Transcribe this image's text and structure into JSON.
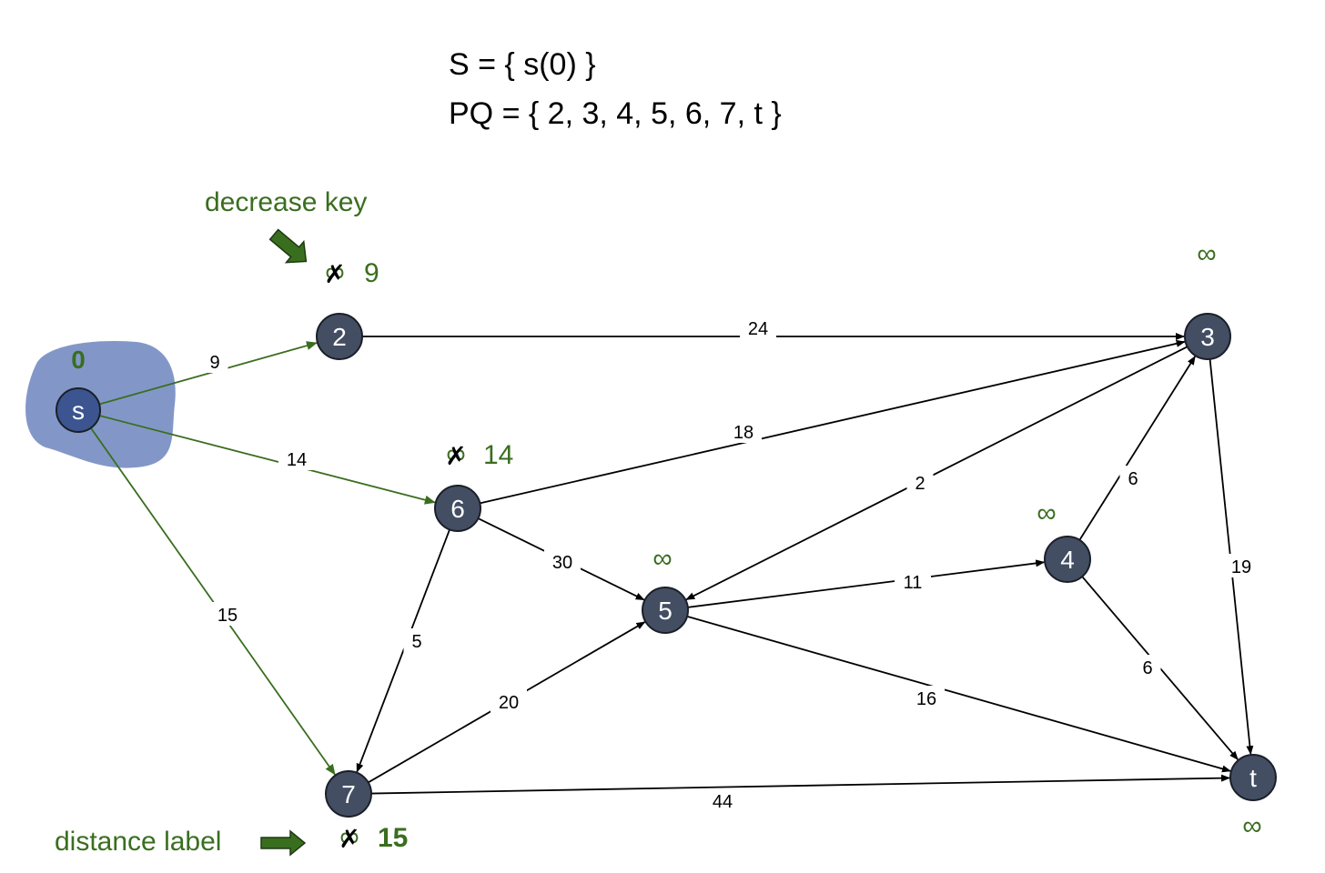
{
  "colors": {
    "green": "#3a6e1f",
    "node_fill": "#434e63",
    "node_stroke": "#1a1f28",
    "blob": "#8297c8",
    "source_fill": "#3c5590",
    "black": "#000000"
  },
  "sets": {
    "s_line": "S = { s(0) }",
    "pq_line": "PQ = { 2, 3, 4, 5, 6, 7, t }"
  },
  "annotations": {
    "decrease_key": "decrease key",
    "distance_label": "distance label"
  },
  "nodes": [
    {
      "id": "s",
      "label": "s",
      "dist": "0",
      "crossed": false
    },
    {
      "id": "2",
      "label": "2",
      "dist": "∞",
      "crossed": true,
      "new_dist": "9"
    },
    {
      "id": "3",
      "label": "3",
      "dist": "∞",
      "crossed": false
    },
    {
      "id": "4",
      "label": "4",
      "dist": "∞",
      "crossed": false
    },
    {
      "id": "5",
      "label": "5",
      "dist": "∞",
      "crossed": false
    },
    {
      "id": "6",
      "label": "6",
      "dist": "∞",
      "crossed": true,
      "new_dist": "14"
    },
    {
      "id": "7",
      "label": "7",
      "dist": "∞",
      "crossed": true,
      "new_dist": "15"
    },
    {
      "id": "t",
      "label": "t",
      "dist": "∞",
      "crossed": false
    }
  ],
  "edges": [
    {
      "from": "s",
      "to": "2",
      "weight": "9",
      "highlight": true
    },
    {
      "from": "s",
      "to": "6",
      "weight": "14",
      "highlight": true
    },
    {
      "from": "s",
      "to": "7",
      "weight": "15",
      "highlight": true
    },
    {
      "from": "2",
      "to": "3",
      "weight": "24",
      "highlight": false
    },
    {
      "from": "6",
      "to": "3",
      "weight": "18",
      "highlight": false
    },
    {
      "from": "3",
      "to": "5",
      "weight": "2",
      "highlight": false
    },
    {
      "from": "6",
      "to": "5",
      "weight": "30",
      "highlight": false
    },
    {
      "from": "6",
      "to": "7",
      "weight": "5",
      "highlight": false
    },
    {
      "from": "7",
      "to": "5",
      "weight": "20",
      "highlight": false
    },
    {
      "from": "5",
      "to": "4",
      "weight": "11",
      "highlight": false
    },
    {
      "from": "4",
      "to": "3",
      "weight": "6",
      "highlight": false
    },
    {
      "from": "3",
      "to": "t",
      "weight": "19",
      "highlight": false
    },
    {
      "from": "4",
      "to": "t",
      "weight": "6",
      "highlight": false
    },
    {
      "from": "5",
      "to": "t",
      "weight": "16",
      "highlight": false
    },
    {
      "from": "7",
      "to": "t",
      "weight": "44",
      "highlight": false
    }
  ]
}
